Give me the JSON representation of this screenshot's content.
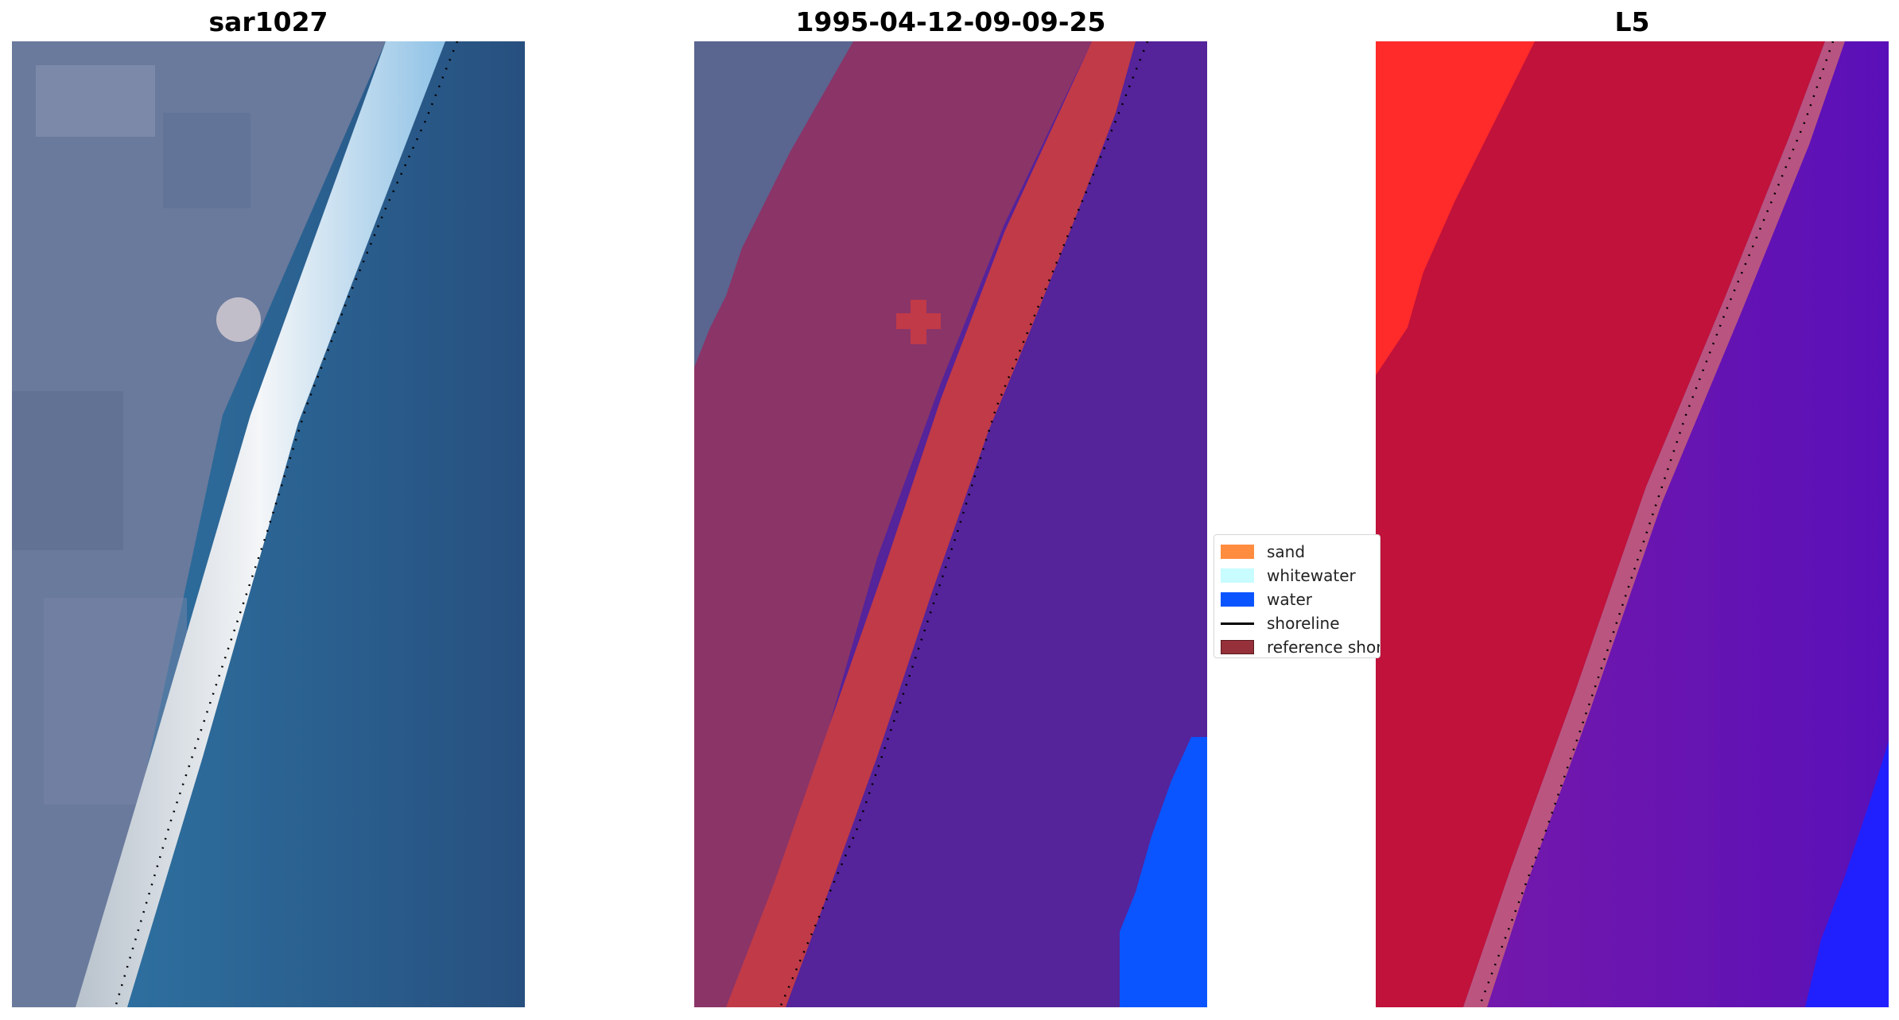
{
  "panels": [
    {
      "title": "sar1027"
    },
    {
      "title": "1995-04-12-09-09-25"
    },
    {
      "title": "L5"
    }
  ],
  "legend": {
    "items": [
      {
        "label": "sand",
        "color": "#ff8c3f"
      },
      {
        "label": "whitewater",
        "color": "#c8fcff"
      },
      {
        "label": "water",
        "color": "#0a55ff"
      },
      {
        "label": "shoreline",
        "color": "#000000"
      },
      {
        "label": "reference shoreline",
        "color": "#96303a"
      }
    ]
  },
  "colors": {
    "rgb_land": "#6a7a9c",
    "rgb_sand": "#f4f6f8",
    "rgb_water": "#2c69a0",
    "class_land": "#8a3468",
    "class_sand": "#c03a48",
    "class_water": "#55239a",
    "class_water_edge": "#0a55ff",
    "mndwi_land": "#c0123a",
    "mndwi_high": "#ff2020",
    "mndwi_water": "#6a12b0",
    "mndwi_deep": "#2020ff"
  }
}
